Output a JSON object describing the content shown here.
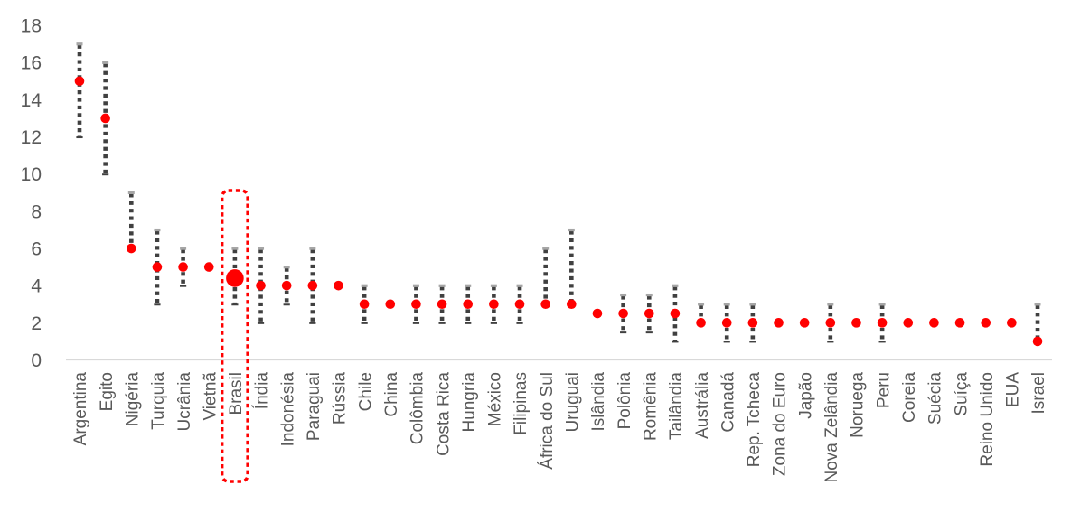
{
  "chart_data": {
    "type": "scatter",
    "title": "",
    "xlabel": "",
    "ylabel": "",
    "grid": "off",
    "legend": "none",
    "ylim": [
      0,
      18
    ],
    "yticks": [
      0,
      2,
      4,
      6,
      8,
      10,
      12,
      14,
      16,
      18
    ],
    "highlight_category": "Brasil",
    "categories": [
      "Argentina",
      "Egito",
      "Nigéria",
      "Turquia",
      "Ucrânia",
      "Vietnã",
      "Brasil",
      "Índia",
      "Indonésia",
      "Paraguai",
      "Rússia",
      "Chile",
      "China",
      "Colômbia",
      "Costa Rica",
      "Hungria",
      "México",
      "Filipinas",
      "África do Sul",
      "Uruguai",
      "Islândia",
      "Polônia",
      "Romênia",
      "Tailândia",
      "Austrália",
      "Canadá",
      "Rep. Tcheca",
      "Zona do Euro",
      "Japão",
      "Nova Zelândia",
      "Noruega",
      "Peru",
      "Coreia",
      "Suécia",
      "Suíça",
      "Reino Unido",
      "EUA",
      "Israel"
    ],
    "series": [
      {
        "name": "dot",
        "values": [
          15,
          13,
          6,
          5,
          5,
          5,
          4.4,
          4,
          4,
          4,
          4,
          3,
          3,
          3,
          3,
          3,
          3,
          3,
          3,
          3,
          2.5,
          2.5,
          2.5,
          2.5,
          2,
          2,
          2,
          2,
          2,
          2,
          2,
          2,
          2,
          2,
          2,
          2,
          2,
          1
        ]
      }
    ],
    "range_min": [
      12,
      10,
      6,
      3,
      4,
      null,
      3,
      2,
      3,
      2,
      null,
      2,
      null,
      2,
      2,
      2,
      2,
      2,
      3,
      3,
      null,
      1.5,
      1.5,
      1,
      2,
      1,
      1,
      null,
      null,
      1,
      null,
      1,
      null,
      null,
      null,
      null,
      null,
      1
    ],
    "range_max": [
      17,
      16,
      9,
      7,
      6,
      null,
      6,
      6,
      5,
      6,
      null,
      4,
      null,
      4,
      4,
      4,
      4,
      4,
      6,
      7,
      null,
      3.5,
      3.5,
      4,
      3,
      3,
      3,
      null,
      null,
      3,
      null,
      3,
      null,
      null,
      null,
      null,
      null,
      3
    ],
    "colors": {
      "dot": "#ff0000",
      "whisker": "#404040",
      "whisker_cap": "#a6a6a6",
      "axis_line": "#d9d9d9",
      "tick_label": "#595959",
      "highlight_box": "#ff0000"
    }
  }
}
